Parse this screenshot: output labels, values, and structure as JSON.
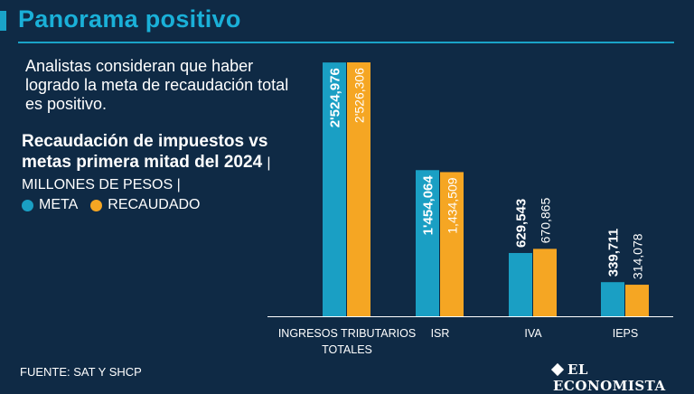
{
  "header": {
    "title": "Panorama positivo"
  },
  "intro": "Analistas consideran que haber logrado la meta de recaudación total es positivo.",
  "chart_heading": {
    "title": "Recaudación de impuestos vs metas primera mitad del 2024",
    "unit": "| MILLONES DE PESOS |"
  },
  "legend": {
    "meta": "META",
    "recaudado": "RECAUDADO"
  },
  "footer": {
    "source": "FUENTE: SAT Y SHCP",
    "logo": "EL ECONOMISTA"
  },
  "colors": {
    "meta": "#1a9fc4",
    "recaudado": "#f5a623",
    "background": "#0f2a45"
  },
  "chart_data": {
    "type": "bar",
    "title": "Recaudación de impuestos vs metas primera mitad del 2024",
    "ylabel": "Millones de pesos",
    "categories": [
      [
        "INGRESOS TRIBUTARIOS",
        "TOTALES"
      ],
      [
        "ISR"
      ],
      [
        "IVA"
      ],
      [
        "IEPS"
      ]
    ],
    "series": [
      {
        "name": "META",
        "values": [
          2524976,
          1454064,
          629543,
          339711
        ],
        "labels": [
          "2'524,976",
          "1'454,064",
          "629,543",
          "339,711"
        ]
      },
      {
        "name": "RECAUDADO",
        "values": [
          2526306,
          1434509,
          670865,
          314078
        ],
        "labels": [
          "2'526,306",
          "1,434,509",
          "670,865",
          "314,078"
        ]
      }
    ],
    "ylim": [
      0,
      2526306
    ]
  }
}
